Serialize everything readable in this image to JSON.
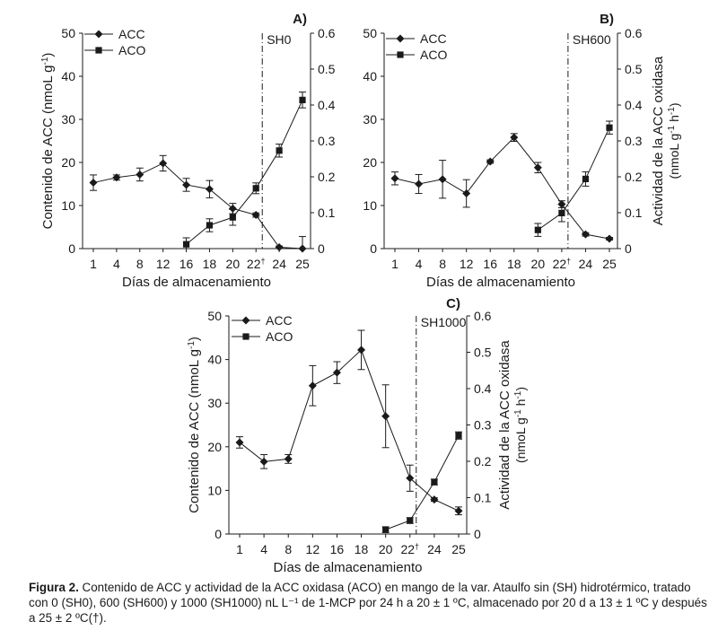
{
  "chart_data": [
    {
      "type": "line",
      "panel": "A)",
      "title": "SH0",
      "marker_label": "SH0",
      "event_category": "22†",
      "categories": [
        "1",
        "4",
        "8",
        "12",
        "16",
        "18",
        "20",
        "22†",
        "24",
        "25"
      ],
      "xlabel": "Días de almacenamiento",
      "ylabel_left": "Contenido de ACC (nmoL g-1)",
      "ylabel_right": "",
      "ylim_left": [
        0,
        50
      ],
      "ylim_right": [
        0,
        0.6
      ],
      "yticks_left": [
        "0",
        "10",
        "20",
        "30",
        "40",
        "50"
      ],
      "yticks_right": [
        "0",
        "0.1",
        "0.2",
        "0.3",
        "0.4",
        "0.5",
        "0.6"
      ],
      "legend": [
        "ACC",
        "ACO"
      ],
      "legend_position": "top-left",
      "series": [
        {
          "name": "ACC",
          "marker": "diamond",
          "axis": "left",
          "values": [
            15.3,
            16.5,
            17.2,
            19.8,
            14.8,
            13.8,
            9.3,
            7.8,
            0.3,
            0.0
          ],
          "errors": [
            1.8,
            0.6,
            1.5,
            1.8,
            1.5,
            2.0,
            1.2,
            0.5,
            0.3,
            2.8
          ]
        },
        {
          "name": "ACO",
          "marker": "square",
          "axis": "right",
          "values": [
            null,
            null,
            null,
            null,
            0.012,
            0.065,
            0.087,
            0.168,
            0.273,
            0.414
          ],
          "errors": [
            null,
            null,
            null,
            null,
            0.018,
            0.018,
            0.022,
            0.015,
            0.018,
            0.022
          ]
        }
      ]
    },
    {
      "type": "line",
      "panel": "B)",
      "title": "SH600",
      "marker_label": "SH600",
      "event_category": "22†",
      "categories": [
        "1",
        "4",
        "8",
        "12",
        "16",
        "18",
        "20",
        "22†",
        "24",
        "25"
      ],
      "xlabel": "Días de almacenamiento",
      "ylabel_left": "",
      "ylabel_right": "Actividad de la ACC oxidasa (nmoL g-1 h-1)",
      "ylim_left": [
        0,
        50
      ],
      "ylim_right": [
        0,
        0.6
      ],
      "yticks_left": [
        "0",
        "10",
        "20",
        "30",
        "40",
        "50"
      ],
      "yticks_right": [
        "0",
        "0.1",
        "0.2",
        "0.3",
        "0.4",
        "0.5",
        "0.6"
      ],
      "legend": [
        "ACC",
        "ACO"
      ],
      "legend_position": "top-left",
      "series": [
        {
          "name": "ACC",
          "marker": "diamond",
          "axis": "left",
          "values": [
            16.3,
            15.0,
            16.1,
            12.8,
            20.2,
            25.8,
            18.8,
            10.3,
            3.3,
            2.3
          ],
          "errors": [
            1.5,
            2.2,
            4.4,
            3.2,
            0.4,
            0.9,
            1.2,
            0.8,
            0.4,
            0.3
          ]
        },
        {
          "name": "ACO",
          "marker": "square",
          "axis": "right",
          "values": [
            null,
            null,
            null,
            null,
            null,
            null,
            0.052,
            0.099,
            0.194,
            0.337
          ],
          "errors": [
            null,
            null,
            null,
            null,
            null,
            null,
            0.018,
            0.024,
            0.02,
            0.018
          ]
        }
      ]
    },
    {
      "type": "line",
      "panel": "C)",
      "title": "SH1000",
      "marker_label": "SH1000",
      "event_category": "22†",
      "categories": [
        "1",
        "4",
        "8",
        "12",
        "16",
        "18",
        "20",
        "22†",
        "24",
        "25"
      ],
      "xlabel": "Días de almacenamiento",
      "ylabel_left": "Contenido de ACC (nmoL g-1)",
      "ylabel_right": "Actividad de la ACC oxidasa (nmoL g-1 h-1)",
      "ylim_left": [
        0,
        50
      ],
      "ylim_right": [
        0,
        0.6
      ],
      "yticks_left": [
        "0",
        "10",
        "20",
        "30",
        "40",
        "50"
      ],
      "yticks_right": [
        "0",
        "0.1",
        "0.2",
        "0.3",
        "0.4",
        "0.5",
        "0.6"
      ],
      "legend": [
        "ACC",
        "ACO"
      ],
      "legend_position": "top-left",
      "series": [
        {
          "name": "ACC",
          "marker": "diamond",
          "axis": "left",
          "values": [
            21.0,
            16.6,
            17.2,
            34.0,
            37.0,
            42.2,
            27.0,
            12.8,
            7.9,
            5.3
          ],
          "errors": [
            1.3,
            1.6,
            1.0,
            4.6,
            2.5,
            4.5,
            7.2,
            3.0,
            0.4,
            0.9
          ]
        },
        {
          "name": "ACO",
          "marker": "square",
          "axis": "right",
          "values": [
            null,
            null,
            null,
            null,
            null,
            null,
            0.012,
            0.037,
            0.143,
            0.271
          ],
          "errors": [
            null,
            null,
            null,
            null,
            null,
            null,
            0.008,
            0.008,
            0.008,
            0.01
          ]
        }
      ]
    }
  ],
  "caption": {
    "label": "Figura 2.",
    "text": " Contenido de ACC y actividad de la ACC oxidasa (ACO) en mango de la var. Ataulfo sin (SH) hidrotérmico, tratado con 0 (SH0), 600 (SH600) y 1000 (SH1000) nL L⁻¹ de 1-MCP por 24 h a 20 ± 1 ºC, almacenado por 20 d a 13 ± 1 ºC y después a 25 ± 2 ºC(†)."
  }
}
